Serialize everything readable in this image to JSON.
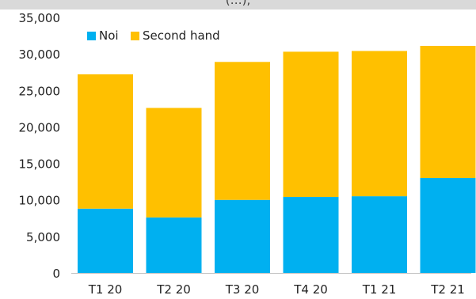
{
  "chart_data": {
    "type": "bar",
    "stacked": true,
    "title": "",
    "title_visible_fragment": "(…), ",
    "xlabel": "",
    "ylabel": "",
    "categories": [
      "T1 20",
      "T2 20",
      "T3 20",
      "T4 20",
      "T1 21",
      "T2 21"
    ],
    "series": [
      {
        "name": "Noi",
        "color": "#00b0f0",
        "values": [
          8800,
          7600,
          10000,
          10400,
          10500,
          13000
        ]
      },
      {
        "name": "Second hand",
        "color": "#ffc000",
        "values": [
          18400,
          15000,
          18900,
          19900,
          19900,
          18100
        ]
      }
    ],
    "ylim": [
      0,
      35000
    ],
    "yticks": [
      0,
      5000,
      10000,
      15000,
      20000,
      25000,
      30000,
      35000
    ],
    "ytick_labels": [
      "0",
      "5,000",
      "10,000",
      "15,000",
      "20,000",
      "25,000",
      "30,000",
      "35,000"
    ],
    "grid": false,
    "legend_position": "top-left"
  }
}
